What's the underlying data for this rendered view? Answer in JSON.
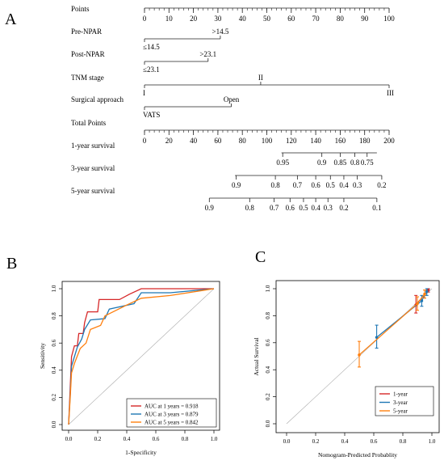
{
  "panels": {
    "A": "A",
    "B": "B",
    "C": "C"
  },
  "chart_data": [
    {
      "panel": "A",
      "type": "nomogram",
      "rows": [
        {
          "id": "points",
          "label": "Points",
          "scale_min": 0,
          "scale_max": 100,
          "tick_labels": [
            {
              "v": 0,
              "t": "0"
            },
            {
              "v": 10,
              "t": "10"
            },
            {
              "v": 20,
              "t": "20"
            },
            {
              "v": 30,
              "t": "30"
            },
            {
              "v": 40,
              "t": "40"
            },
            {
              "v": 50,
              "t": "50"
            },
            {
              "v": 60,
              "t": "60"
            },
            {
              "v": 70,
              "t": "70"
            },
            {
              "v": 80,
              "t": "80"
            },
            {
              "v": 90,
              "t": "90"
            },
            {
              "v": 100,
              "t": "100"
            }
          ],
          "minor_step": 2
        },
        {
          "id": "pre-npar",
          "label": "Pre-NPAR",
          "levels": [
            {
              "text": "≤14.5",
              "points": 0,
              "side": "below"
            },
            {
              "text": ">14.5",
              "points": 31,
              "side": "above"
            }
          ]
        },
        {
          "id": "post-npar",
          "label": "Post-NPAR",
          "levels": [
            {
              "text": "≤23.1",
              "points": 0,
              "side": "below"
            },
            {
              "text": ">23.1",
              "points": 26,
              "side": "above"
            }
          ]
        },
        {
          "id": "tnm-stage",
          "label": "TNM stage",
          "levels": [
            {
              "text": "I",
              "points": 0,
              "side": "below"
            },
            {
              "text": "II",
              "points": 47.5,
              "side": "above"
            },
            {
              "text": "III",
              "points": 100,
              "side": "below"
            }
          ]
        },
        {
          "id": "surgical-approach",
          "label": "Surgical approach",
          "levels": [
            {
              "text": "VATS",
              "points": 0,
              "side": "below"
            },
            {
              "text": "Open",
              "points": 35.5,
              "side": "above"
            }
          ]
        },
        {
          "id": "total-points",
          "label": "Total Points",
          "scale_min": 0,
          "scale_max": 200,
          "tick_labels": [
            {
              "v": 0,
              "t": "0"
            },
            {
              "v": 20,
              "t": "20"
            },
            {
              "v": 40,
              "t": "40"
            },
            {
              "v": 60,
              "t": "60"
            },
            {
              "v": 80,
              "t": "80"
            },
            {
              "v": 100,
              "t": "100"
            },
            {
              "v": 120,
              "t": "120"
            },
            {
              "v": 140,
              "t": "140"
            },
            {
              "v": 160,
              "t": "160"
            },
            {
              "v": 180,
              "t": "180"
            },
            {
              "v": 200,
              "t": "200"
            }
          ],
          "minor_step": 4
        },
        {
          "id": "survival-1y",
          "label": "1-year survival",
          "total_points_range": [
            112,
            190
          ],
          "ticks": [
            {
              "tp": 113,
              "t": "0.95"
            },
            {
              "tp": 145,
              "t": "0.9"
            },
            {
              "tp": 160,
              "t": "0.85"
            },
            {
              "tp": 172,
              "t": "0.8"
            },
            {
              "tp": 182,
              "t": "0.75"
            }
          ]
        },
        {
          "id": "survival-3y",
          "label": "3-year survival",
          "total_points_range": [
            74,
            194
          ],
          "ticks": [
            {
              "tp": 75,
              "t": "0.9"
            },
            {
              "tp": 107,
              "t": "0.8"
            },
            {
              "tp": 125,
              "t": "0.7"
            },
            {
              "tp": 140,
              "t": "0.6"
            },
            {
              "tp": 152,
              "t": "0.5"
            },
            {
              "tp": 163,
              "t": "0.4"
            },
            {
              "tp": 174,
              "t": "0.3"
            },
            {
              "tp": 194,
              "t": "0.2"
            }
          ]
        },
        {
          "id": "survival-5y",
          "label": "5-year survival",
          "total_points_range": [
            53,
            190
          ],
          "ticks": [
            {
              "tp": 53,
              "t": "0.9"
            },
            {
              "tp": 86,
              "t": "0.8"
            },
            {
              "tp": 106,
              "t": "0.7"
            },
            {
              "tp": 119,
              "t": "0.6"
            },
            {
              "tp": 130,
              "t": "0.5"
            },
            {
              "tp": 140,
              "t": "0.4"
            },
            {
              "tp": 150,
              "t": "0.3"
            },
            {
              "tp": 163,
              "t": "0.2"
            },
            {
              "tp": 190,
              "t": "0.1"
            }
          ]
        }
      ]
    },
    {
      "panel": "B",
      "type": "line",
      "xlabel": "1-Specificity",
      "ylabel": "Sensitivity",
      "xlim": [
        0,
        1
      ],
      "ylim": [
        0,
        1
      ],
      "x_ticks": [
        "0.0",
        "0.2",
        "0.4",
        "0.6",
        "0.8",
        "1.0"
      ],
      "y_ticks": [
        "0.0",
        "0.2",
        "0.4",
        "0.6",
        "0.8",
        "1.0"
      ],
      "legend_position": "bottom-right",
      "reference_line": "diagonal",
      "series": [
        {
          "name": "AUC at 1 years = 0.918",
          "color": "#d62728",
          "points": [
            [
              0,
              0
            ],
            [
              0.01,
              0.25
            ],
            [
              0.02,
              0.5
            ],
            [
              0.04,
              0.58
            ],
            [
              0.06,
              0.58
            ],
            [
              0.07,
              0.67
            ],
            [
              0.1,
              0.67
            ],
            [
              0.11,
              0.75
            ],
            [
              0.13,
              0.83
            ],
            [
              0.2,
              0.83
            ],
            [
              0.21,
              0.92
            ],
            [
              0.35,
              0.92
            ],
            [
              0.42,
              0.96
            ],
            [
              0.5,
              1.0
            ],
            [
              1.0,
              1.0
            ]
          ]
        },
        {
          "name": "AUC at 3 years = 0.879",
          "color": "#1f77b4",
          "points": [
            [
              0,
              0
            ],
            [
              0.01,
              0.2
            ],
            [
              0.02,
              0.43
            ],
            [
              0.04,
              0.5
            ],
            [
              0.06,
              0.57
            ],
            [
              0.09,
              0.63
            ],
            [
              0.11,
              0.7
            ],
            [
              0.15,
              0.77
            ],
            [
              0.25,
              0.78
            ],
            [
              0.28,
              0.85
            ],
            [
              0.45,
              0.89
            ],
            [
              0.5,
              0.97
            ],
            [
              0.7,
              0.97
            ],
            [
              1.0,
              1.0
            ]
          ]
        },
        {
          "name": "AUC at 5 years = 0.842",
          "color": "#ff7f0e",
          "points": [
            [
              0,
              0
            ],
            [
              0.01,
              0.18
            ],
            [
              0.02,
              0.38
            ],
            [
              0.04,
              0.45
            ],
            [
              0.08,
              0.56
            ],
            [
              0.12,
              0.6
            ],
            [
              0.15,
              0.7
            ],
            [
              0.22,
              0.73
            ],
            [
              0.25,
              0.8
            ],
            [
              0.4,
              0.88
            ],
            [
              0.5,
              0.93
            ],
            [
              0.7,
              0.95
            ],
            [
              1.0,
              1.0
            ]
          ]
        }
      ]
    },
    {
      "panel": "C",
      "type": "line",
      "xlabel": "Nomogram-Predicted Probablity",
      "ylabel": "Actual Survival",
      "xlim": [
        0,
        1
      ],
      "ylim": [
        0,
        1
      ],
      "x_ticks": [
        "0.0",
        "0.2",
        "0.4",
        "0.6",
        "0.8",
        "1.0"
      ],
      "y_ticks": [
        "0.0",
        "0.2",
        "0.4",
        "0.6",
        "0.8",
        "1.0"
      ],
      "legend_position": "bottom-right",
      "reference_line": "diagonal",
      "series": [
        {
          "name": "1-year",
          "color": "#d62728",
          "points": [
            {
              "x": 0.89,
              "y": 0.88,
              "lo": 0.82,
              "hi": 0.95
            },
            {
              "x": 0.975,
              "y": 0.99,
              "lo": 0.975,
              "hi": 1.0
            }
          ]
        },
        {
          "name": "3-year",
          "color": "#1f77b4",
          "points": [
            {
              "x": 0.62,
              "y": 0.64,
              "lo": 0.56,
              "hi": 0.73
            },
            {
              "x": 0.93,
              "y": 0.91,
              "lo": 0.87,
              "hi": 0.95
            },
            {
              "x": 0.965,
              "y": 0.98,
              "lo": 0.95,
              "hi": 1.0
            }
          ]
        },
        {
          "name": "5-year",
          "color": "#ff7f0e",
          "points": [
            {
              "x": 0.5,
              "y": 0.51,
              "lo": 0.42,
              "hi": 0.61
            },
            {
              "x": 0.9,
              "y": 0.89,
              "lo": 0.84,
              "hi": 0.94
            },
            {
              "x": 0.95,
              "y": 0.96,
              "lo": 0.93,
              "hi": 0.99
            }
          ]
        }
      ]
    }
  ]
}
